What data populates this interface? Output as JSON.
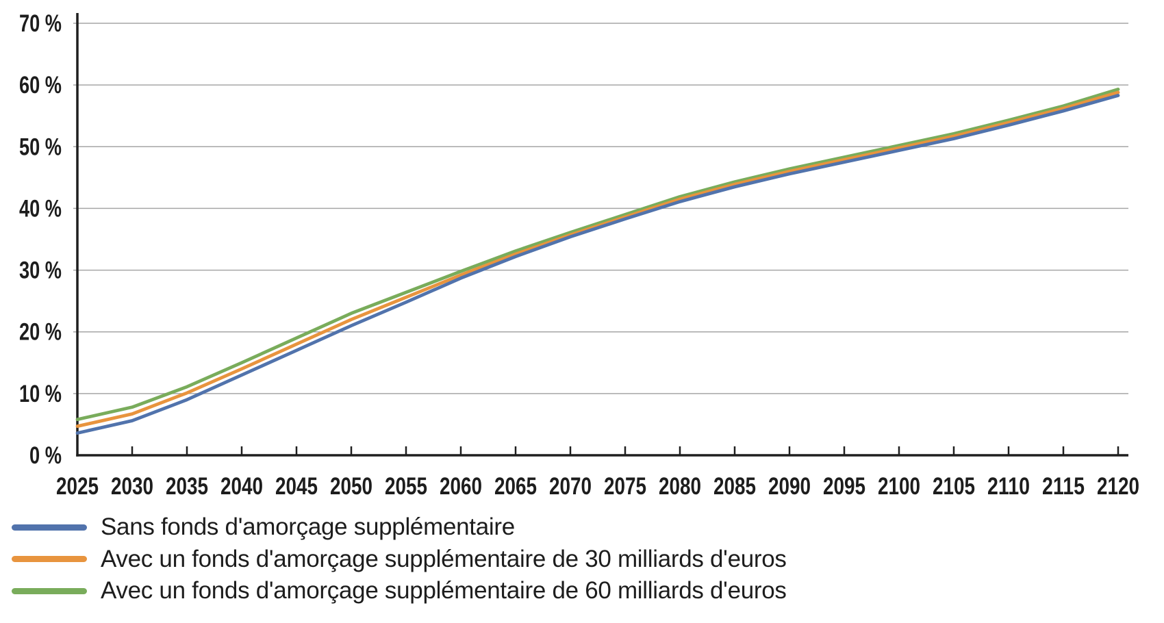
{
  "colors": {
    "background": "#FFFFFF",
    "axis": "#1f1f1f",
    "gridline": "#A6A6A6",
    "text": "#1d1d1d"
  },
  "chart_data": {
    "type": "line",
    "title": "",
    "xlabel": "",
    "ylabel": "",
    "unit": "%",
    "grid": "horizontal",
    "legend_position": "bottom-left",
    "xlim": [
      2025,
      2120
    ],
    "ylim": [
      0,
      70
    ],
    "x": [
      2025,
      2030,
      2035,
      2040,
      2045,
      2050,
      2055,
      2060,
      2065,
      2070,
      2075,
      2080,
      2085,
      2090,
      2095,
      2100,
      2105,
      2110,
      2115,
      2120
    ],
    "x_tick_labels": [
      "2025",
      "2030",
      "2035",
      "2040",
      "2045",
      "2050",
      "2055",
      "2060",
      "2065",
      "2070",
      "2075",
      "2080",
      "2085",
      "2090",
      "2095",
      "2100",
      "2105",
      "2110",
      "2115",
      "2120"
    ],
    "y_ticks": [
      0,
      10,
      20,
      30,
      40,
      50,
      60,
      70
    ],
    "y_tick_labels": [
      "0 %",
      "10 %",
      "20 %",
      "30 %",
      "40 %",
      "50 %",
      "60 %",
      "70 %"
    ],
    "series": [
      {
        "name": "Sans fonds d'amorçage supplémentaire",
        "color": "#5173AC",
        "values": [
          3.6,
          5.6,
          9.0,
          13.0,
          17.0,
          21.0,
          24.8,
          28.7,
          32.2,
          35.4,
          38.3,
          41.1,
          43.5,
          45.6,
          47.5,
          49.4,
          51.3,
          53.5,
          55.8,
          58.3
        ]
      },
      {
        "name": "Avec un fonds d'amorçage supplémentaire de 30 milliards d'euros",
        "color": "#E8943E",
        "values": [
          4.7,
          6.7,
          10.1,
          14.0,
          18.0,
          22.0,
          25.6,
          29.2,
          32.6,
          35.7,
          38.6,
          41.5,
          43.9,
          46.0,
          47.9,
          49.8,
          51.7,
          53.9,
          56.2,
          58.8
        ]
      },
      {
        "name": "Avec un fonds d'amorçage supplémentaire de 60 milliards d'euros",
        "color": "#79AC5B",
        "values": [
          5.8,
          7.8,
          11.1,
          15.0,
          19.0,
          23.0,
          26.4,
          29.8,
          33.1,
          36.1,
          39.0,
          41.9,
          44.3,
          46.4,
          48.3,
          50.2,
          52.1,
          54.3,
          56.6,
          59.3
        ]
      }
    ]
  }
}
